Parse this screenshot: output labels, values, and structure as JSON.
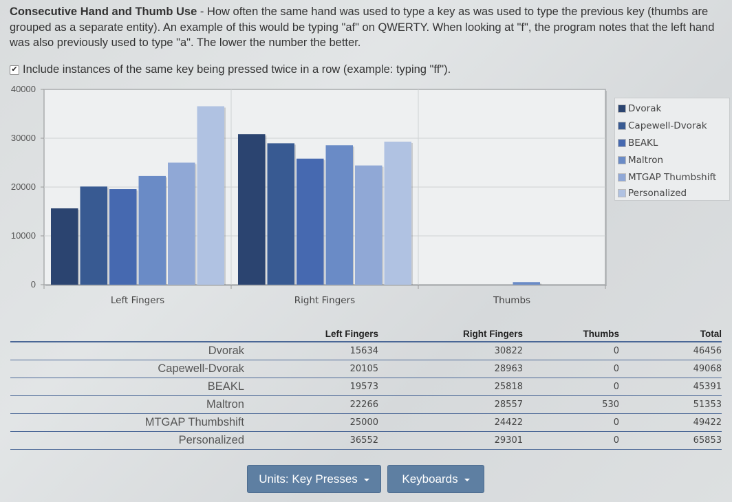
{
  "description": {
    "title": "Consecutive Hand and Thumb Use",
    "text": " - How often the same hand was used to type a key as was used to type the previous key (thumbs are grouped as a separate entity). An example of this would be typing \"af\" on QWERTY. When looking at \"f\", the program notes that the left hand was also previously used to type \"a\". The lower the number the better."
  },
  "checkbox": {
    "checked": true,
    "mark": "✔",
    "label": "Include instances of the same key being pressed twice in a row (example: typing \"ff\")."
  },
  "chart_data": {
    "type": "bar",
    "categories": [
      "Left Fingers",
      "Right Fingers",
      "Thumbs"
    ],
    "ylim": [
      0,
      40000
    ],
    "yticks": [
      "0",
      "10000",
      "20000",
      "30000",
      "40000"
    ],
    "grid": true,
    "legend_position": "right",
    "series": [
      {
        "name": "Dvorak",
        "color": "#2b4470",
        "values": [
          15634,
          30822,
          0
        ]
      },
      {
        "name": "Capewell-Dvorak",
        "color": "#385a92",
        "values": [
          20105,
          28963,
          0
        ]
      },
      {
        "name": "BEAKL",
        "color": "#4669b0",
        "values": [
          19573,
          25818,
          0
        ]
      },
      {
        "name": "Maltron",
        "color": "#6a8bc6",
        "values": [
          22266,
          28557,
          530
        ]
      },
      {
        "name": "MTGAP Thumbshift",
        "color": "#90a8d6",
        "values": [
          25000,
          24422,
          0
        ]
      },
      {
        "name": "Personalized",
        "color": "#b0c2e2",
        "values": [
          36552,
          29301,
          0
        ]
      }
    ]
  },
  "table": {
    "headers": [
      "",
      "Left Fingers",
      "Right Fingers",
      "Thumbs",
      "Total"
    ],
    "rows": [
      {
        "name": "Dvorak",
        "left": "15634",
        "right": "30822",
        "thumbs": "0",
        "total": "46456"
      },
      {
        "name": "Capewell-Dvorak",
        "left": "20105",
        "right": "28963",
        "thumbs": "0",
        "total": "49068"
      },
      {
        "name": "BEAKL",
        "left": "19573",
        "right": "25818",
        "thumbs": "0",
        "total": "45391"
      },
      {
        "name": "Maltron",
        "left": "22266",
        "right": "28557",
        "thumbs": "530",
        "total": "51353"
      },
      {
        "name": "MTGAP Thumbshift",
        "left": "25000",
        "right": "24422",
        "thumbs": "0",
        "total": "49422"
      },
      {
        "name": "Personalized",
        "left": "36552",
        "right": "29301",
        "thumbs": "0",
        "total": "65853"
      }
    ]
  },
  "buttons": {
    "units": "Units: Key Presses",
    "keyboards": "Keyboards"
  }
}
